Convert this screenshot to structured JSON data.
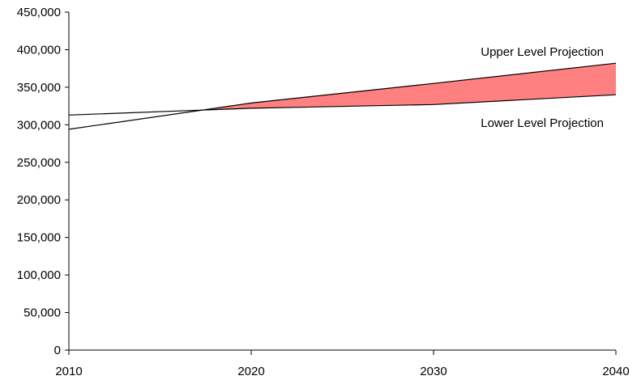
{
  "chart_data": {
    "type": "area",
    "x": [
      2010,
      2020,
      2030,
      2040
    ],
    "xlim": [
      2010,
      2040
    ],
    "ylim": [
      0,
      450000
    ],
    "x_ticks": [
      "2010",
      "2020",
      "2030",
      "2040"
    ],
    "y_ticks": [
      "0",
      "50,000",
      "100,000",
      "150,000",
      "200,000",
      "250,000",
      "300,000",
      "350,000",
      "400,000",
      "450,000"
    ],
    "y_tick_values": [
      0,
      50000,
      100000,
      150000,
      200000,
      250000,
      300000,
      350000,
      400000,
      450000
    ],
    "grid": false,
    "series": [
      {
        "name": "Upper Level Projection",
        "x": [
          2010,
          2020,
          2030,
          2040
        ],
        "values": [
          294000,
          329000,
          355000,
          382000
        ]
      },
      {
        "name": "Lower Level Projection",
        "x": [
          2010,
          2020,
          2030,
          2040
        ],
        "values": [
          313000,
          322000,
          327000,
          340000
        ]
      }
    ],
    "fill_between": {
      "upper": "Upper Level Projection",
      "lower": "Lower Level Projection",
      "color": "#ff8080"
    },
    "line_color": "#000000"
  }
}
